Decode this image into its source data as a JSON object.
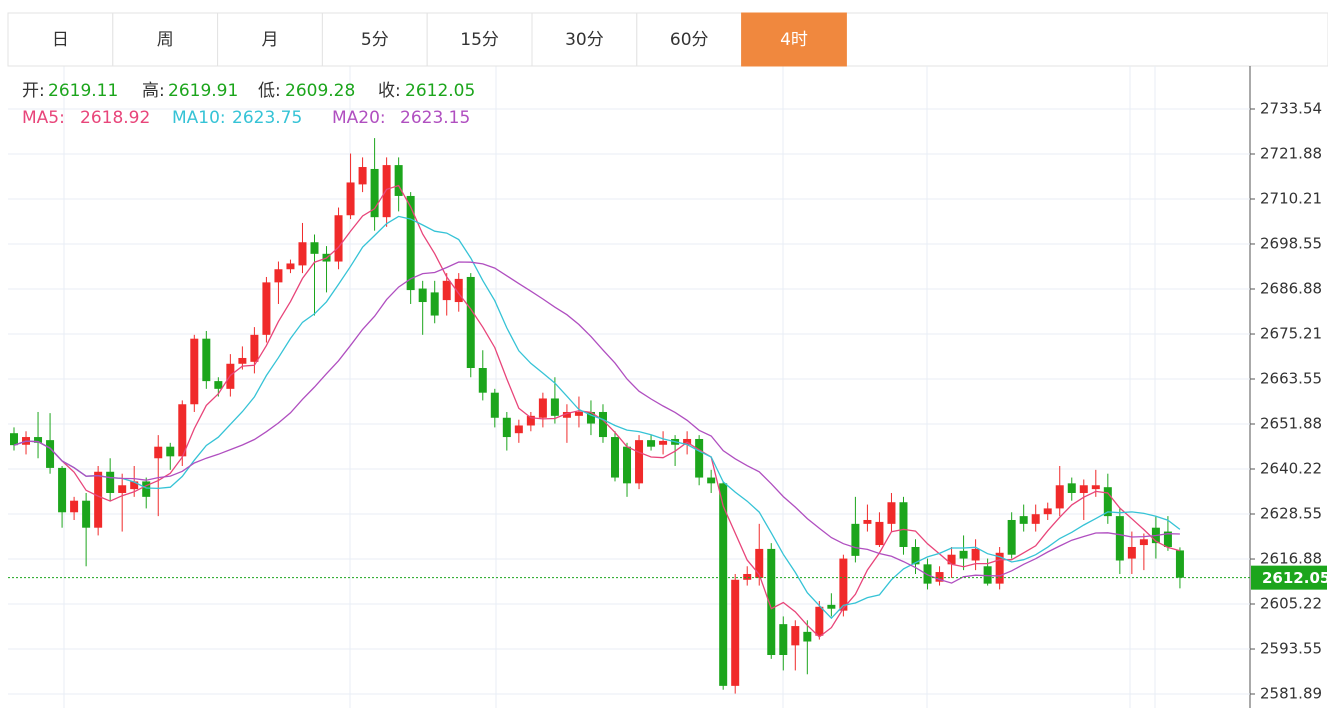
{
  "chart_data": {
    "type": "candlestick",
    "tabs": [
      "日",
      "周",
      "月",
      "5分",
      "15分",
      "30分",
      "60分",
      "4时"
    ],
    "active_tab": 7,
    "ohlc_labels": [
      "开:",
      "高:",
      "低:",
      "收:"
    ],
    "ohlc_values": [
      2619.11,
      2619.91,
      2609.28,
      2612.05
    ],
    "ma": [
      {
        "name": "MA5:",
        "value": 2618.92,
        "color": "#e8457a"
      },
      {
        "name": "MA10:",
        "value": 2623.75,
        "color": "#36c3d6"
      },
      {
        "name": "MA20:",
        "value": 2623.15,
        "color": "#b04fc0"
      }
    ],
    "up_color": "#f02a2a",
    "down_color": "#1ca51c",
    "open": [
      2649.5,
      2646.5,
      2648.5,
      2647.7,
      2640.5,
      2629,
      2632,
      2625,
      2639.5,
      2634,
      2635,
      2637,
      2643,
      2646,
      2643.5,
      2657,
      2674,
      2663,
      2661,
      2667.5,
      2668,
      2675,
      2688.6,
      2692,
      2693,
      2699,
      2696,
      2694,
      2706,
      2714,
      2718,
      2705.5,
      2719,
      2711,
      2687,
      2686,
      2684,
      2683.5,
      2690,
      2666.4,
      2660,
      2653.5,
      2649.5,
      2651.5,
      2653.5,
      2658.5,
      2653.5,
      2654,
      2655,
      2655,
      2648.5,
      2646,
      2636.5,
      2647.7,
      2646.5,
      2648,
      2646.5,
      2648,
      2638,
      2636.5,
      2584,
      2611.5,
      2612,
      2619.5,
      2600,
      2594.5,
      2598,
      2597,
      2605,
      2603.5,
      2626,
      2626,
      2620.5,
      2626,
      2631.6,
      2620,
      2615.5,
      2611,
      2615.5,
      2619,
      2616.5,
      2615,
      2610.5,
      2627,
      2628,
      2626,
      2628.5,
      2630,
      2636.5,
      2634,
      2635,
      2635.5,
      2628,
      2617,
      2620.5,
      2625,
      2624,
      2619.11
    ],
    "high": [
      2651,
      2650,
      2655,
      2654.7,
      2641,
      2633,
      2634,
      2641,
      2643,
      2639,
      2641,
      2638,
      2649,
      2647,
      2658,
      2675,
      2676,
      2664,
      2670,
      2672,
      2677,
      2690,
      2694,
      2694.5,
      2704,
      2701,
      2698,
      2708,
      2722,
      2721,
      2726,
      2721,
      2721,
      2712,
      2689,
      2689,
      2691,
      2691,
      2691,
      2671,
      2661,
      2655,
      2653,
      2655,
      2660,
      2664,
      2657,
      2659,
      2658,
      2657,
      2650,
      2647,
      2649,
      2649,
      2650,
      2649,
      2650,
      2649,
      2640,
      2637,
      2613,
      2615,
      2626,
      2621,
      2602,
      2601,
      2601,
      2606,
      2608,
      2618,
      2633,
      2631,
      2629,
      2634,
      2633,
      2622,
      2617,
      2615,
      2620,
      2623,
      2622,
      2617,
      2620,
      2629,
      2631,
      2631,
      2631.5,
      2641,
      2638,
      2637.5,
      2640,
      2639,
      2630,
      2624,
      2623.5,
      2628,
      2628,
      2619.91
    ],
    "low": [
      2645,
      2644,
      2643,
      2639,
      2625,
      2627,
      2615,
      2623,
      2632,
      2624,
      2633,
      2630,
      2628,
      2640,
      2641,
      2655,
      2661,
      2659,
      2659,
      2666,
      2665,
      2673,
      2683,
      2691,
      2691,
      2680,
      2686,
      2692,
      2705,
      2712,
      2702,
      2703,
      2707,
      2683,
      2675,
      2678,
      2680,
      2681,
      2664,
      2658,
      2651,
      2645,
      2647,
      2650,
      2651,
      2652,
      2647,
      2651,
      2649,
      2647,
      2637,
      2633,
      2635,
      2645,
      2644,
      2641,
      2644,
      2636,
      2634,
      2583,
      2582,
      2610,
      2610,
      2591,
      2588,
      2588,
      2587,
      2596,
      2602,
      2602,
      2616,
      2624,
      2620,
      2624,
      2618,
      2613,
      2609,
      2610,
      2612,
      2614,
      2614,
      2610,
      2609,
      2617,
      2624,
      2624,
      2627,
      2628,
      2632,
      2627,
      2633,
      2626,
      2613,
      2613,
      2614,
      2617,
      2619,
      2609.28
    ],
    "close": [
      2646.4,
      2648.5,
      2647,
      2640.5,
      2629,
      2632,
      2625,
      2639.5,
      2634,
      2636,
      2637,
      2633,
      2646,
      2643.5,
      2657,
      2674,
      2663,
      2661,
      2667.5,
      2669,
      2675,
      2688.6,
      2692,
      2693.5,
      2699,
      2696,
      2694,
      2706,
      2714.5,
      2718.5,
      2705.5,
      2719,
      2711,
      2686.6,
      2683.5,
      2680,
      2689,
      2689.5,
      2666.4,
      2660,
      2653.5,
      2648.5,
      2651.5,
      2654,
      2658.5,
      2654,
      2655,
      2655,
      2652,
      2648.5,
      2638,
      2636.5,
      2647.7,
      2646,
      2647.5,
      2646.5,
      2648,
      2638,
      2636.5,
      2584,
      2611.5,
      2613,
      2619.5,
      2592,
      2592,
      2599.5,
      2595.5,
      2604.5,
      2604,
      2617,
      2617.7,
      2627,
      2626.5,
      2631.6,
      2620,
      2615.5,
      2610.5,
      2613.5,
      2618,
      2617,
      2619.5,
      2610.5,
      2618.5,
      2618,
      2626,
      2628.5,
      2630,
      2636,
      2634,
      2636,
      2636,
      2628,
      2616.5,
      2620,
      2622,
      2621,
      2620,
      2612.05
    ],
    "ylim": [
      2578.26,
      2744.69
    ],
    "yticks": [
      2733.54,
      2721.88,
      2710.21,
      2698.55,
      2686.88,
      2675.21,
      2663.55,
      2651.88,
      2640.22,
      2628.55,
      2616.88,
      2605.22,
      2593.55,
      2581.89
    ],
    "last_price": 2612.05,
    "last_price_color": "#1ca51c",
    "grid": true
  }
}
